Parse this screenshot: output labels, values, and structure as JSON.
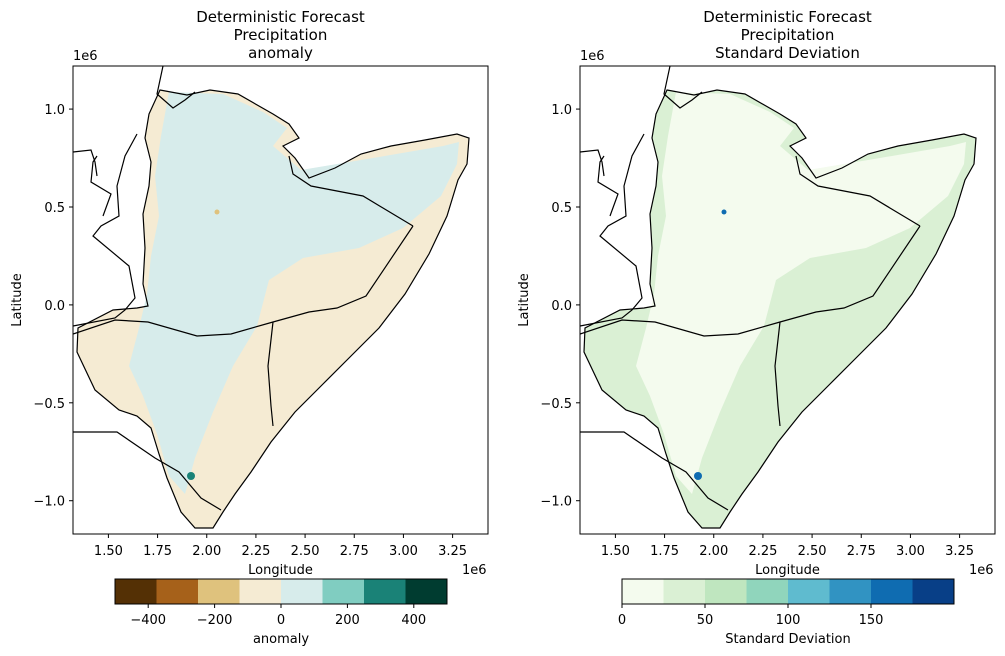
{
  "chart_data": [
    {
      "type": "heatmap",
      "title_lines": [
        "Deterministic Forecast",
        "Precipitation",
        "anomaly"
      ],
      "xlabel": "Longitude",
      "ylabel": "Latitude",
      "x_offset_label": "1e6",
      "y_offset_label": "1e6",
      "xlim": [
        1.32,
        3.43
      ],
      "ylim": [
        -1.17,
        1.22
      ],
      "xticks": [
        1.5,
        1.75,
        2.0,
        2.25,
        2.5,
        2.75,
        3.0,
        3.25
      ],
      "xtick_labels": [
        "1.50",
        "1.75",
        "2.00",
        "2.25",
        "2.50",
        "2.75",
        "3.00",
        "3.25"
      ],
      "yticks": [
        -1.0,
        -0.5,
        0.0,
        0.5,
        1.0
      ],
      "ytick_labels": [
        "−1.0",
        "−0.5",
        "0.0",
        "0.5",
        "1.0"
      ],
      "colorbar": {
        "label": "anomaly",
        "range": [
          -500,
          500
        ],
        "bins": [
          -500,
          -375,
          -250,
          -125,
          0,
          125,
          250,
          375,
          500
        ],
        "ticks": [
          -400,
          -200,
          0,
          200,
          400
        ],
        "tick_labels": [
          "−400",
          "−200",
          "0",
          "200",
          "400"
        ],
        "colors": [
          "#543005",
          "#a6611a",
          "#dfc27d",
          "#f5ebd3",
          "#d7eceb",
          "#80cdc1",
          "#1a8277",
          "#003c30"
        ]
      },
      "fill_colors": [
        "#f5ebd3",
        "#d7eceb"
      ]
    },
    {
      "type": "heatmap",
      "title_lines": [
        "Deterministic Forecast",
        "Precipitation",
        "Standard Deviation"
      ],
      "xlabel": "Longitude",
      "ylabel": "Latitude",
      "x_offset_label": "1e6",
      "y_offset_label": "1e6",
      "xlim": [
        1.32,
        3.43
      ],
      "ylim": [
        -1.17,
        1.22
      ],
      "xticks": [
        1.5,
        1.75,
        2.0,
        2.25,
        2.5,
        2.75,
        3.0,
        3.25
      ],
      "xtick_labels": [
        "1.50",
        "1.75",
        "2.00",
        "2.25",
        "2.50",
        "2.75",
        "3.00",
        "3.25"
      ],
      "yticks": [
        -1.0,
        -0.5,
        0.0,
        0.5,
        1.0
      ],
      "ytick_labels": [
        "−1.0",
        "−0.5",
        "0.0",
        "0.5",
        "1.0"
      ],
      "colorbar": {
        "label": "Standard Deviation",
        "range": [
          0,
          200
        ],
        "bins": [
          0,
          25,
          50,
          75,
          100,
          125,
          150,
          175,
          200
        ],
        "ticks": [
          0,
          50,
          100,
          150
        ],
        "tick_labels": [
          "0",
          "50",
          "100",
          "150"
        ],
        "colors": [
          "#f4fbee",
          "#daf0d4",
          "#bfe6bf",
          "#90d5bc",
          "#5fbbcf",
          "#3193c2",
          "#0f6cb1",
          "#083f87"
        ]
      },
      "fill_colors": [
        "#daf0d4",
        "#f4fbee"
      ]
    }
  ]
}
